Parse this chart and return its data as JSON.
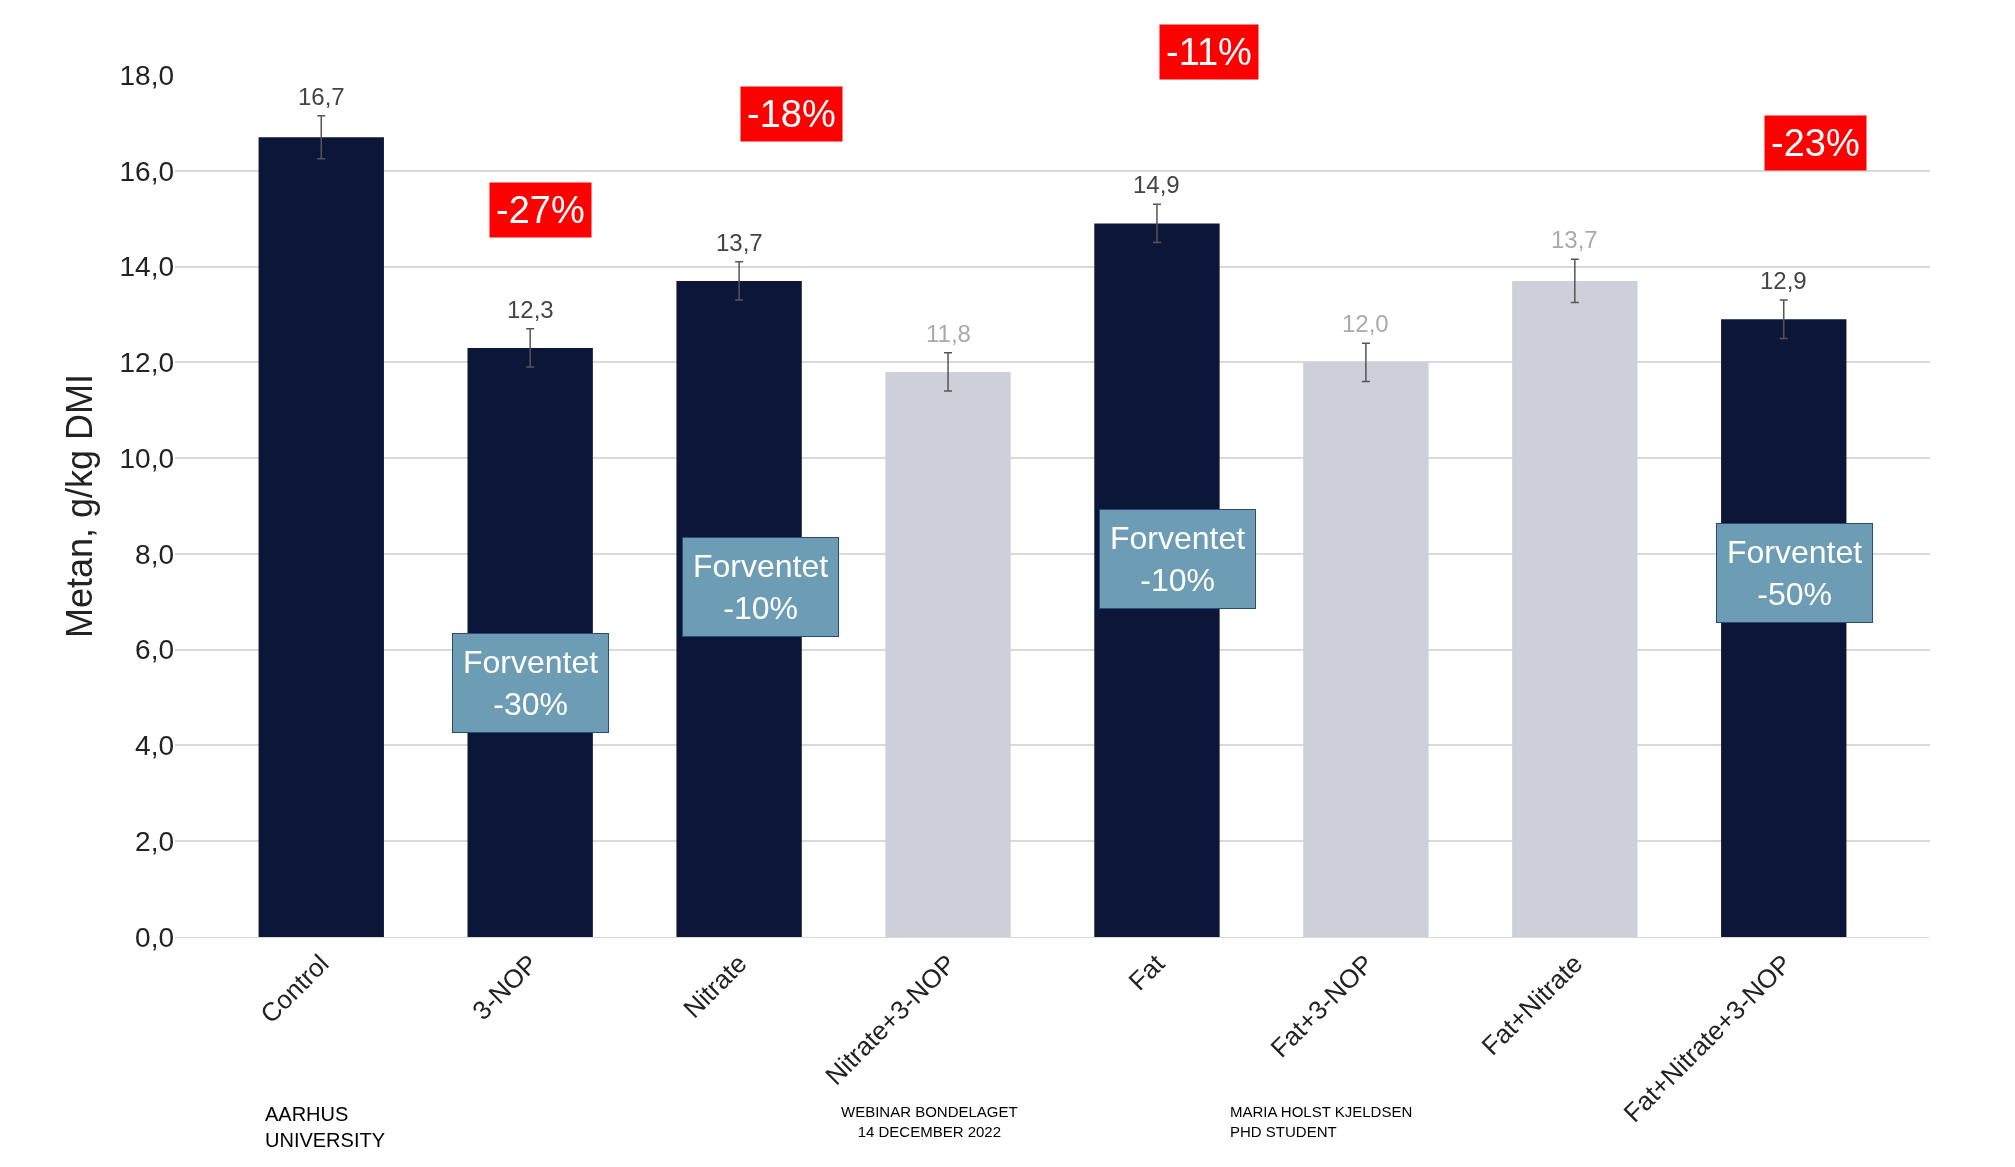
{
  "chart_data": {
    "type": "bar",
    "ylabel": "Metan, g/kg DMI",
    "categories": [
      "Control",
      "3-NOP",
      "Nitrate",
      "Nitrate+3-NOP",
      "Fat",
      "Fat+3-NOP",
      "Fat+Nitrate",
      "Fat+Nitrate+3-NOP"
    ],
    "values": [
      16.7,
      12.3,
      13.7,
      11.8,
      14.9,
      12.0,
      13.7,
      12.9
    ],
    "errors": [
      0.45,
      0.4,
      0.4,
      0.4,
      0.4,
      0.4,
      0.45,
      0.4
    ],
    "value_labels": [
      "16,7",
      "12,3",
      "13,7",
      "11,8",
      "14,9",
      "12,0",
      "13,7",
      "12,9"
    ],
    "colors": [
      "#0c1638",
      "#0c1638",
      "#0c1638",
      "#cdd0d8",
      "#0c1638",
      "#cdd0d8",
      "#cdd0d8",
      "#0c1638"
    ],
    "ylim": [
      0,
      18
    ],
    "yticks": [
      {
        "value": 0,
        "label": "0,0"
      },
      {
        "value": 2,
        "label": "2,0"
      },
      {
        "value": 4,
        "label": "4,0"
      },
      {
        "value": 6,
        "label": "6,0"
      },
      {
        "value": 8,
        "label": "8,0"
      },
      {
        "value": 10,
        "label": "10,0"
      },
      {
        "value": 12,
        "label": "12,0"
      },
      {
        "value": 14,
        "label": "14,0"
      },
      {
        "value": 16,
        "label": "16,0"
      },
      {
        "value": 18,
        "label": "18,0"
      }
    ],
    "grid": "y",
    "annotations": [
      "-27%",
      "-18%",
      "-11%",
      "-23%",
      "Forventet\n-30%",
      "Forventet\n-10%",
      "Forventet\n-10%",
      "Forventet\n-50%",
      "AARHUS\nUNIVERSITY",
      "WEBINAR BONDELAGET\n14 DECEMBER 2022",
      "MARIA HOLST KJELDSEN\nPHD STUDENT"
    ]
  }
}
